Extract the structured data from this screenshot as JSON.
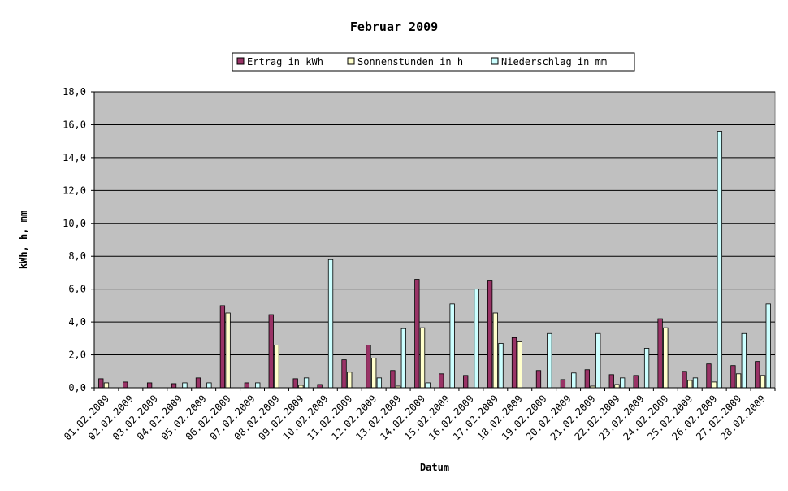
{
  "chart_data": {
    "type": "bar",
    "title": "Februar 2009",
    "xlabel": "Datum",
    "ylabel": "kWh, h, mm",
    "ylim": [
      0,
      18
    ],
    "yticks": [
      "0,0",
      "2,0",
      "4,0",
      "6,0",
      "8,0",
      "10,0",
      "12,0",
      "14,0",
      "16,0",
      "18,0"
    ],
    "grid": true,
    "legend_position": "top",
    "categories": [
      "01.02.2009",
      "02.02.2009",
      "03.02.2009",
      "04.02.2009",
      "05.02.2009",
      "06.02.2009",
      "07.02.2009",
      "08.02.2009",
      "09.02.2009",
      "10.02.2009",
      "11.02.2009",
      "12.02.2009",
      "13.02.2009",
      "14.02.2009",
      "15.02.2009",
      "16.02.2009",
      "17.02.2009",
      "18.02.2009",
      "19.02.2009",
      "20.02.2009",
      "21.02.2009",
      "22.02.2009",
      "23.02.2009",
      "24.02.2009",
      "25.02.2009",
      "26.02.2009",
      "27.02.2009",
      "28.02.2009"
    ],
    "series": [
      {
        "name": "Ertrag in kWh",
        "color": "#993366",
        "values": [
          0.55,
          0.35,
          0.3,
          0.25,
          0.6,
          5.0,
          0.3,
          4.45,
          0.55,
          0.2,
          1.7,
          2.6,
          1.05,
          6.6,
          0.85,
          0.75,
          6.5,
          3.05,
          1.05,
          0.5,
          1.1,
          0.8,
          0.75,
          4.2,
          1.0,
          1.45,
          1.35,
          1.6
        ]
      },
      {
        "name": "Sonnenstunden in h",
        "color": "#FFFFCC",
        "values": [
          0.3,
          0.0,
          0.0,
          0.0,
          0.0,
          4.55,
          0.0,
          2.6,
          0.15,
          0.0,
          0.95,
          1.8,
          0.1,
          3.65,
          0.0,
          0.0,
          4.55,
          2.8,
          0.0,
          0.0,
          0.1,
          0.2,
          0.0,
          3.65,
          0.45,
          0.35,
          0.85,
          0.75
        ]
      },
      {
        "name": "Niederschlag in mm",
        "color": "#CCFFFF",
        "values": [
          0.0,
          0.0,
          0.0,
          0.3,
          0.3,
          0.0,
          0.3,
          0.0,
          0.6,
          7.8,
          0.0,
          0.6,
          3.6,
          0.3,
          5.1,
          6.0,
          2.7,
          0.0,
          3.3,
          0.9,
          3.3,
          0.6,
          2.4,
          0.0,
          0.6,
          15.6,
          3.3,
          5.1
        ]
      }
    ]
  },
  "colors": {
    "plot_background": "#C0C0C0",
    "grid_line": "#000000"
  }
}
